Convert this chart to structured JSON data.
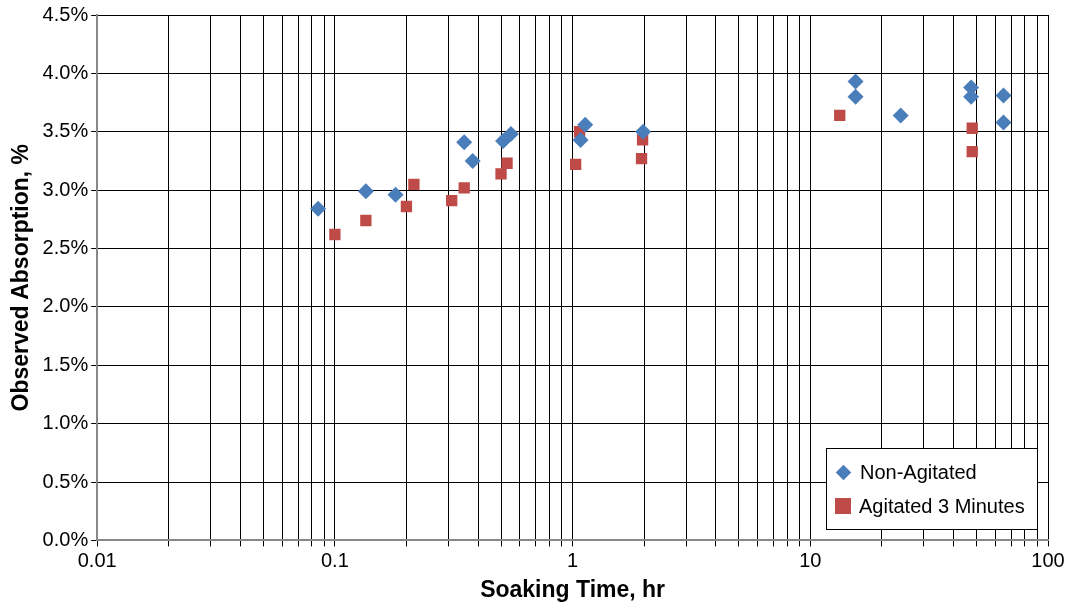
{
  "chart_data": {
    "type": "scatter",
    "xlabel": "Soaking Time, hr",
    "ylabel": "Observed Absorption, %",
    "log": "x",
    "grid": true,
    "legend": "bottom right",
    "xlim": [
      0.01,
      100
    ],
    "xticks": [
      {
        "value": 0.01,
        "label": "0.01"
      },
      {
        "value": 0.02,
        "label": null
      },
      {
        "value": 0.03,
        "label": null
      },
      {
        "value": 0.04,
        "label": null
      },
      {
        "value": 0.05,
        "label": null
      },
      {
        "value": 0.06,
        "label": null
      },
      {
        "value": 0.07,
        "label": null
      },
      {
        "value": 0.08,
        "label": null
      },
      {
        "value": 0.09,
        "label": null
      },
      {
        "value": 0.1,
        "label": "0.1"
      },
      {
        "value": 0.2,
        "label": null
      },
      {
        "value": 0.3,
        "label": null
      },
      {
        "value": 0.4,
        "label": null
      },
      {
        "value": 0.5,
        "label": null
      },
      {
        "value": 0.6,
        "label": null
      },
      {
        "value": 0.7,
        "label": null
      },
      {
        "value": 0.8,
        "label": null
      },
      {
        "value": 0.9,
        "label": null
      },
      {
        "value": 1,
        "label": "1"
      },
      {
        "value": 2,
        "label": null
      },
      {
        "value": 3,
        "label": null
      },
      {
        "value": 4,
        "label": null
      },
      {
        "value": 5,
        "label": null
      },
      {
        "value": 6,
        "label": null
      },
      {
        "value": 7,
        "label": null
      },
      {
        "value": 8,
        "label": null
      },
      {
        "value": 9,
        "label": null
      },
      {
        "value": 10,
        "label": "10"
      },
      {
        "value": 20,
        "label": null
      },
      {
        "value": 30,
        "label": null
      },
      {
        "value": 40,
        "label": null
      },
      {
        "value": 50,
        "label": null
      },
      {
        "value": 60,
        "label": null
      },
      {
        "value": 70,
        "label": null
      },
      {
        "value": 80,
        "label": null
      },
      {
        "value": 90,
        "label": null
      },
      {
        "value": 100,
        "label": "100"
      }
    ],
    "ylim": [
      0,
      4.5
    ],
    "yticks": [
      {
        "value": 0,
        "label": "0.0%"
      },
      {
        "value": 0.5,
        "label": "0.5%"
      },
      {
        "value": 1,
        "label": "1.0%"
      },
      {
        "value": 1.5,
        "label": "1.5%"
      },
      {
        "value": 2,
        "label": "2.0%"
      },
      {
        "value": 2.5,
        "label": "2.5%"
      },
      {
        "value": 3,
        "label": "3.0%"
      },
      {
        "value": 3.5,
        "label": "3.5%"
      },
      {
        "value": 4,
        "label": "4.0%"
      },
      {
        "value": 4.5,
        "label": "4.5%"
      }
    ],
    "series": [
      {
        "name": "Non-Agitated",
        "color": "#4a7ebb",
        "marker": "diamond",
        "x": [
          0.085,
          0.135,
          0.18,
          0.35,
          0.38,
          0.51,
          0.55,
          1.08,
          1.13,
          1.98,
          15.5,
          15.5,
          24,
          47.5,
          47.5,
          65,
          65
        ],
        "values": [
          2.84,
          2.99,
          2.96,
          3.41,
          3.25,
          3.42,
          3.48,
          3.43,
          3.56,
          3.5,
          3.93,
          3.8,
          3.64,
          3.88,
          3.8,
          3.81,
          3.58
        ]
      },
      {
        "name": "Agitated 3 Minutes",
        "color": "#be4b48",
        "marker": "square",
        "x": [
          0.1,
          0.135,
          0.2,
          0.215,
          0.31,
          0.35,
          0.5,
          0.53,
          1.03,
          1.07,
          1.95,
          1.97,
          13.3,
          48,
          48
        ],
        "values": [
          2.62,
          2.74,
          2.86,
          3.05,
          2.91,
          3.02,
          3.14,
          3.23,
          3.22,
          3.5,
          3.27,
          3.43,
          3.64,
          3.53,
          3.33
        ]
      }
    ]
  }
}
